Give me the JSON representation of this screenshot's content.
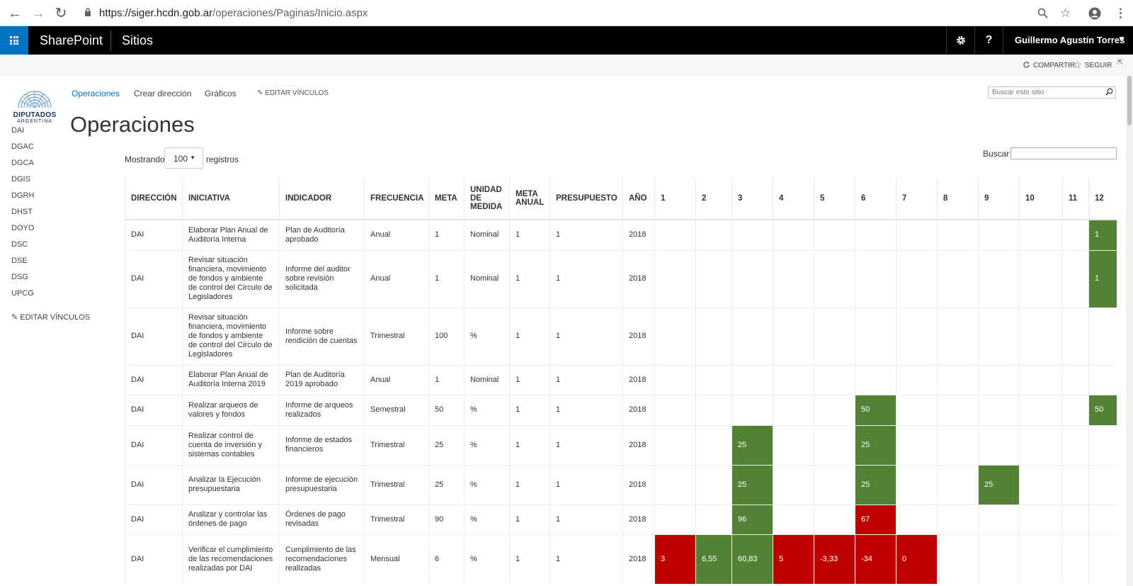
{
  "browser": {
    "url_host": "https://siger.hcdn.gob.ar",
    "url_path": "/operaciones/Paginas/Inicio.aspx"
  },
  "suite": {
    "brand": "SharePoint",
    "sites": "Sitios",
    "settings_icon": "gear-icon",
    "help_label": "?",
    "user": "Guillermo Agustín Torres"
  },
  "ribbon": {
    "share": "COMPARTIR",
    "follow": "SEGUIR"
  },
  "logo": {
    "name": "DIPUTADOS",
    "sub": "ARGENTINA"
  },
  "leftnav": {
    "items": [
      "DAI",
      "DGAC",
      "DGCA",
      "DGIS",
      "DGRH",
      "DHST",
      "DOYO",
      "DSC",
      "DSE",
      "DSG",
      "UPCG"
    ],
    "edit_links": "EDITAR VÍNCULOS"
  },
  "topnav": {
    "items": [
      "Operaciones",
      "Crear dirección",
      "Gráficos"
    ],
    "edit_links": "EDITAR VÍNCULOS",
    "search_placeholder": "Buscar este sitio"
  },
  "page": {
    "title": "Operaciones",
    "showing_prefix": "Mostrando",
    "page_size": "100",
    "showing_suffix": "registros",
    "search_label": "Buscar"
  },
  "table": {
    "headers": [
      "DIRECCIÓN",
      "INICIATIVA",
      "INDICADOR",
      "FRECUENCIA",
      "META",
      "UNIDAD DE MEDIDA",
      "META ANUAL",
      "PRESUPUESTO",
      "AÑO",
      "1",
      "2",
      "3",
      "4",
      "5",
      "6",
      "7",
      "8",
      "9",
      "10",
      "11",
      "12"
    ],
    "rows": [
      {
        "h": 43,
        "cells": [
          "DAI",
          "Elaborar Plan Anual de Auditoría Interna",
          "Plan de Auditoría aprobado",
          "Anual",
          "1",
          "Nominal",
          "1",
          "1",
          "2018",
          "",
          "",
          "",
          "",
          "",
          "",
          "",
          "",
          "",
          "",
          "",
          "1"
        ],
        "status": [
          "",
          "",
          "",
          "",
          "",
          "",
          "",
          "",
          "",
          "",
          "",
          "g"
        ]
      },
      {
        "h": 81,
        "cells": [
          "DAI",
          "Revisar situación financiera, movimiento de fondos y ambiente de control del Circulo de Legisladores",
          "Informe del auditor sobre revisión solicitada",
          "Anual",
          "1",
          "Nominal",
          "1",
          "1",
          "2018",
          "",
          "",
          "",
          "",
          "",
          "",
          "",
          "",
          "",
          "",
          "",
          "1"
        ],
        "status": [
          "",
          "",
          "",
          "",
          "",
          "",
          "",
          "",
          "",
          "",
          "",
          "g"
        ]
      },
      {
        "h": 81,
        "cells": [
          "DAI",
          "Revisar situación financiera, movimiento de fondos y ambiente de control del Circulo de Legisladores",
          "Informe sobre rendición de cuentas",
          "Trimestral",
          "100",
          "%",
          "1",
          "1",
          "2018",
          "",
          "",
          "",
          "",
          "",
          "",
          "",
          "",
          "",
          "",
          "",
          ""
        ],
        "status": [
          "",
          "",
          "",
          "",
          "",
          "",
          "",
          "",
          "",
          "",
          "",
          ""
        ]
      },
      {
        "h": 42,
        "cells": [
          "DAI",
          "Elaborar Plan Anual de Auditoría Interna 2019",
          "Plan de Auditoría 2019 aprobado",
          "Anual",
          "1",
          "Nominal",
          "1",
          "1",
          "2018",
          "",
          "",
          "",
          "",
          "",
          "",
          "",
          "",
          "",
          "",
          "",
          ""
        ],
        "status": [
          "",
          "",
          "",
          "",
          "",
          "",
          "",
          "",
          "",
          "",
          "",
          ""
        ]
      },
      {
        "h": 43,
        "cells": [
          "DAI",
          "Realizar arqueos de valores y fondos",
          "Informe de arqueos realizados",
          "Semestral",
          "50",
          "%",
          "1",
          "1",
          "2018",
          "",
          "",
          "",
          "",
          "",
          "50",
          "",
          "",
          "",
          "",
          "",
          "50"
        ],
        "status": [
          "",
          "",
          "",
          "",
          "",
          "g",
          "",
          "",
          "",
          "",
          "",
          "g"
        ]
      },
      {
        "h": 56,
        "cells": [
          "DAI",
          "Realizar control de cuenta de inversión y sistemas contables",
          "Informe de estados financieros",
          "Trimestral",
          "25",
          "%",
          "1",
          "1",
          "2018",
          "",
          "",
          "25",
          "",
          "",
          "25",
          "",
          "",
          "",
          "",
          "",
          ""
        ],
        "status": [
          "",
          "",
          "g",
          "",
          "",
          "g",
          "",
          "",
          "",
          "",
          "",
          ""
        ]
      },
      {
        "h": 56,
        "cells": [
          "DAI",
          "Analizar la Ejecución presupuestaria",
          "Informe de ejecución presupuestaria",
          "Trimestral",
          "25",
          "%",
          "1",
          "1",
          "2018",
          "",
          "",
          "25",
          "",
          "",
          "25",
          "",
          "",
          "25",
          "",
          "",
          ""
        ],
        "status": [
          "",
          "",
          "g",
          "",
          "",
          "g",
          "",
          "",
          "g",
          "",
          "",
          ""
        ]
      },
      {
        "h": 42,
        "cells": [
          "DAI",
          "Analizar y controlar las órdenes de pago",
          "Órdenes de pago revisadas",
          "Trimestral",
          "90",
          "%",
          "1",
          "1",
          "2018",
          "",
          "",
          "96",
          "",
          "",
          "67",
          "",
          "",
          "",
          "",
          "",
          ""
        ],
        "status": [
          "",
          "",
          "g",
          "",
          "",
          "r",
          "",
          "",
          "",
          "",
          "",
          ""
        ]
      },
      {
        "h": 70,
        "cells": [
          "DAI",
          "Verificar el cumplimiento de las recomendaciones realizadas por DAI",
          "Cumplimiento de las recomendaciones realizadas",
          "Mensual",
          "6",
          "%",
          "1",
          "1",
          "2018",
          "3",
          "6,55",
          "60,83",
          "5",
          "-3,33",
          "-34",
          "0",
          "",
          "",
          "",
          "",
          ""
        ],
        "status": [
          "r",
          "g",
          "g",
          "r",
          "r",
          "r",
          "r",
          "",
          "",
          "",
          "",
          ""
        ]
      }
    ]
  }
}
